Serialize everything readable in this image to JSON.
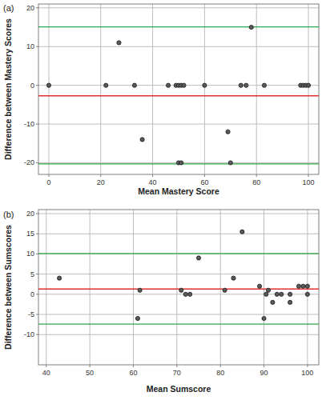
{
  "chart_data": [
    {
      "type": "scatter",
      "panel_label": "(a)",
      "x_label": "Mean Mastery Score",
      "y_label": "Difference between Mastery Scores",
      "x": [
        0,
        22,
        27,
        33,
        36,
        46,
        49,
        50,
        51,
        52,
        50,
        51,
        60,
        69,
        70,
        74,
        76,
        78,
        83,
        97,
        98,
        99,
        100
      ],
      "y": [
        0,
        0,
        11,
        0,
        -14,
        0,
        0,
        0,
        0,
        0,
        -20,
        -20,
        0,
        -12,
        -20,
        0,
        0,
        15,
        0,
        0,
        0,
        0,
        0
      ],
      "color": "#5a5a5a",
      "xlim": [
        -4,
        104
      ],
      "ylim": [
        -23,
        21
      ],
      "xticks": [
        0,
        20,
        40,
        60,
        80,
        100
      ],
      "yticks": [
        -20,
        -10,
        0,
        10,
        20
      ],
      "grid": true,
      "mean_difference": -2.7,
      "limits_of_agreement": [
        -20.3,
        15.1
      ]
    },
    {
      "type": "scatter",
      "panel_label": "(b)",
      "x_label": "Mean Sumscore",
      "y_label": "Difference between Sumscores",
      "x": [
        43,
        61,
        61.5,
        71,
        72,
        73,
        75,
        81,
        83,
        85,
        89,
        90,
        90.5,
        91,
        92,
        93,
        94,
        96,
        96,
        98,
        99,
        100,
        100
      ],
      "y": [
        4,
        -6,
        1,
        1,
        0,
        0,
        9,
        1,
        4,
        15.5,
        2,
        -6,
        0,
        1,
        -2,
        0,
        0,
        -2,
        0,
        2,
        2,
        2,
        0
      ],
      "color": "#5a5a5a",
      "xlim": [
        38.2,
        102.6
      ],
      "ylim": [
        -17.5,
        21
      ],
      "xticks": [
        40,
        50,
        60,
        70,
        80,
        90,
        100
      ],
      "yticks": [
        -10,
        -5,
        0,
        5,
        10,
        15,
        20
      ],
      "grid": true,
      "mean_difference": 1.3,
      "limits_of_agreement": [
        -7.4,
        10.1
      ]
    }
  ]
}
